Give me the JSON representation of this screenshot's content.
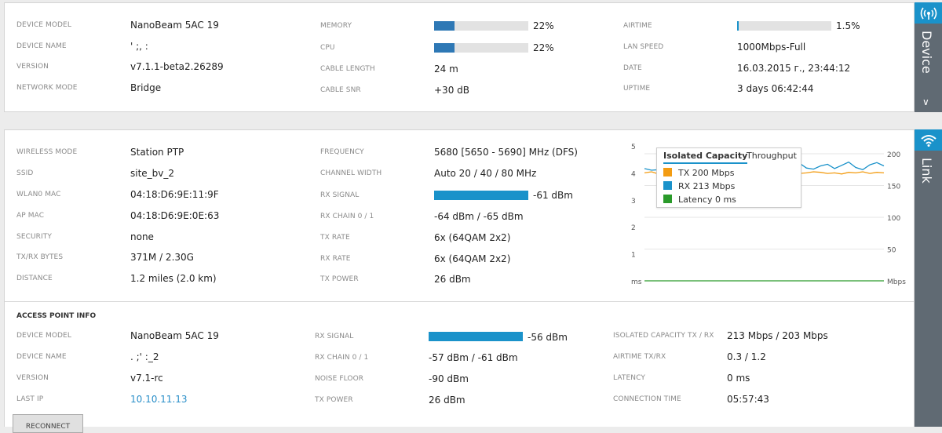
{
  "device": {
    "labels": {
      "model": "DEVICE MODEL",
      "name": "DEVICE NAME",
      "version": "VERSION",
      "network_mode": "NETWORK MODE",
      "memory": "MEMORY",
      "cpu": "CPU",
      "cable_length": "CABLE LENGTH",
      "cable_snr": "CABLE SNR",
      "airtime": "AIRTIME",
      "lan_speed": "LAN SPEED",
      "date": "DATE",
      "uptime": "UPTIME"
    },
    "values": {
      "model": "NanoBeam 5AC 19",
      "name": "' ;, :",
      "version": "v7.1.1-beta2.26289",
      "network_mode": "Bridge",
      "memory": "22%",
      "cpu": "22%",
      "cable_length": "24 m",
      "cable_snr": "+30 dB",
      "airtime": "1.5%",
      "lan_speed": "1000Mbps-Full",
      "date": "16.03.2015 г., 23:44:12",
      "uptime": "3 days 06:42:44"
    },
    "memory_level": 0.22,
    "cpu_level": 0.22,
    "airtime_level": 0.015
  },
  "wireless": {
    "labels": {
      "mode": "WIRELESS MODE",
      "ssid": "SSID",
      "wlan_mac": "WLAN0 MAC",
      "ap_mac": "AP MAC",
      "security": "SECURITY",
      "bytes": "TX/RX BYTES",
      "distance": "DISTANCE",
      "frequency": "FREQUENCY",
      "channel_width": "CHANNEL WIDTH",
      "rx_signal": "RX SIGNAL",
      "rx_chain": "RX CHAIN 0 / 1",
      "tx_rate": "TX RATE",
      "rx_rate": "RX RATE",
      "tx_power": "TX POWER"
    },
    "values": {
      "mode": "Station PTP",
      "ssid": "site_bv_2",
      "wlan_mac": "04:18:D6:9E:11:9F",
      "ap_mac": "04:18:D6:9E:0E:63",
      "security": "none",
      "bytes": "371M / 2.30G",
      "distance": "1.2 miles (2.0 km)",
      "frequency": "5680 [5650 - 5690] MHz (DFS)",
      "channel_width": "Auto 20 / 40 / 80 MHz",
      "rx_signal": "-61 dBm",
      "rx_chain": "-64 dBm / -65 dBm",
      "tx_rate": "6x (64QAM 2x2)",
      "rx_rate": "6x (64QAM 2x2)",
      "tx_power": "26 dBm"
    },
    "rx_signal_level": 1.0
  },
  "access_point": {
    "title": "ACCESS POINT INFO",
    "labels": {
      "model": "DEVICE MODEL",
      "name": "DEVICE NAME",
      "version": "VERSION",
      "last_ip": "LAST IP",
      "rx_signal": "RX SIGNAL",
      "rx_chain": "RX CHAIN 0 / 1",
      "noise_floor": "NOISE FLOOR",
      "tx_power": "TX POWER",
      "capacity": "ISOLATED CAPACITY TX / RX",
      "airtime": "AIRTIME TX/RX",
      "latency": "LATENCY",
      "connection_time": "CONNECTION TIME"
    },
    "values": {
      "model": "NanoBeam 5AC 19",
      "name": ". ;' :_2",
      "version": "v7.1-rc",
      "last_ip": "10.10.11.13",
      "rx_signal": "-56 dBm",
      "rx_chain": "-57 dBm / -61 dBm",
      "noise_floor": "-90 dBm",
      "tx_power": "26 dBm",
      "capacity": "213 Mbps / 203 Mbps",
      "airtime": "0.3 / 1.2",
      "latency": "0 ms",
      "connection_time": "05:57:43"
    },
    "rx_signal_level": 1.0,
    "reconnect_label": "RECONNECT"
  },
  "sidebar": {
    "device_label": "Device",
    "link_label": "Link",
    "chevron": "∨"
  },
  "colors": {
    "tx": "#f39c12",
    "rx": "#1a92ca",
    "latency": "#2a9a2a"
  },
  "chart_data": {
    "type": "line",
    "left_ticks": [
      "5",
      "4",
      "3",
      "2",
      "1",
      "ms"
    ],
    "right_ticks": [
      "200",
      "150",
      "100",
      "50",
      "Mbps"
    ],
    "left_ylim": [
      0,
      5
    ],
    "right_ylim": [
      0,
      250
    ],
    "legend": {
      "tabs": [
        "Isolated Capacity",
        "Throughput"
      ],
      "active_tab": 0,
      "items": [
        "TX 200 Mbps",
        "RX 213 Mbps",
        "Latency 0 ms"
      ]
    },
    "series": [
      {
        "name": "TX",
        "axis": "right",
        "values": [
          200,
          202,
          198,
          201,
          199,
          203,
          200,
          198,
          201,
          202,
          199,
          200,
          201,
          198,
          200,
          202,
          199,
          201,
          200,
          198,
          203,
          201,
          199,
          200,
          202,
          201,
          199,
          200,
          198,
          201,
          200,
          202,
          199,
          201,
          200
        ]
      },
      {
        "name": "RX",
        "axis": "right",
        "values": [
          208,
          205,
          206,
          209,
          204,
          207,
          210,
          206,
          205,
          208,
          207,
          206,
          209,
          205,
          207,
          206,
          208,
          205,
          207,
          209,
          206,
          212,
          218,
          209,
          207,
          213,
          216,
          208,
          214,
          220,
          210,
          206,
          215,
          219,
          213
        ]
      },
      {
        "name": "Latency",
        "axis": "left",
        "values": [
          0,
          0,
          0,
          0,
          0,
          0,
          0,
          0,
          0,
          0,
          0,
          0,
          0,
          0,
          0,
          0,
          0,
          0,
          0,
          0,
          0,
          0,
          0,
          0,
          0,
          0,
          0,
          0,
          0,
          0,
          0,
          0,
          0,
          0,
          0
        ]
      }
    ]
  }
}
